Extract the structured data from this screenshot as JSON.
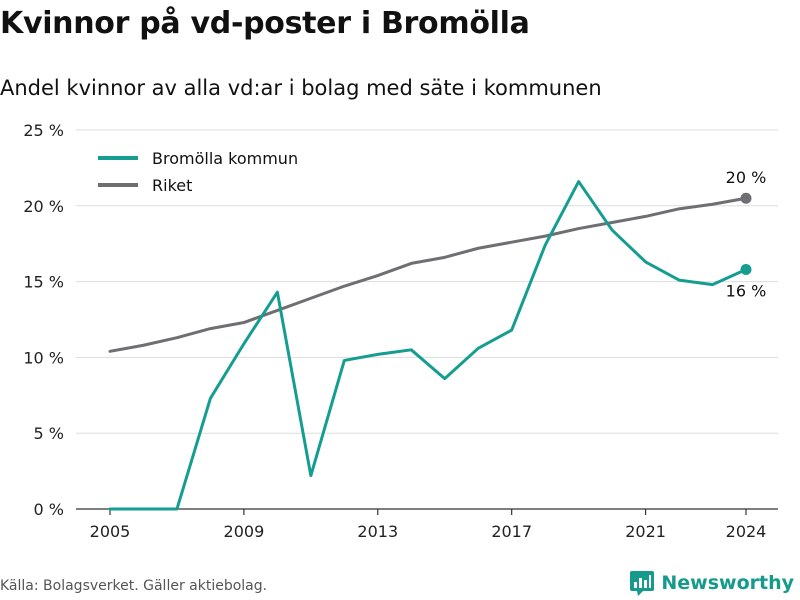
{
  "title": "Kvinnor på vd-poster i Bromölla",
  "subtitle": "Andel kvinnor av alla vd:ar i bolag med säte i kommunen",
  "source": "Källa: Bolagsverket. Gäller aktiebolag.",
  "brand": {
    "name": "Newsworthy",
    "icon": "newsworthy-logo-icon"
  },
  "colors": {
    "bromolla": "#169d91",
    "riket": "#6f6e72",
    "grid": "#dddddd"
  },
  "chart_data": {
    "type": "line",
    "title": "Kvinnor på vd-poster i Bromölla",
    "subtitle": "Andel kvinnor av alla vd:ar i bolag med säte i kommunen",
    "x": [
      2005,
      2006,
      2007,
      2008,
      2009,
      2010,
      2011,
      2012,
      2013,
      2014,
      2015,
      2016,
      2017,
      2018,
      2019,
      2020,
      2021,
      2022,
      2023,
      2024
    ],
    "x_ticks": [
      "2005",
      "2009",
      "2013",
      "2017",
      "2021",
      "2024"
    ],
    "y_ticks": [
      "0 %",
      "5 %",
      "10 %",
      "15 %",
      "20 %",
      "25 %"
    ],
    "ylim": [
      0,
      25
    ],
    "grid": true,
    "legend_position": "top-left",
    "series": [
      {
        "name": "Bromölla kommun",
        "color": "#169d91",
        "values": [
          0,
          0,
          0,
          7.3,
          10.9,
          14.3,
          2.2,
          9.8,
          10.2,
          10.5,
          8.6,
          10.6,
          11.8,
          17.4,
          21.6,
          18.4,
          16.3,
          15.1,
          14.8,
          15.8
        ],
        "end_label": "16 %"
      },
      {
        "name": "Riket",
        "color": "#6f6e72",
        "values": [
          10.4,
          10.8,
          11.3,
          11.9,
          12.3,
          13.1,
          13.9,
          14.7,
          15.4,
          16.2,
          16.6,
          17.2,
          17.6,
          18.0,
          18.5,
          18.9,
          19.3,
          19.8,
          20.1,
          20.5
        ],
        "end_label": "20 %"
      }
    ]
  }
}
